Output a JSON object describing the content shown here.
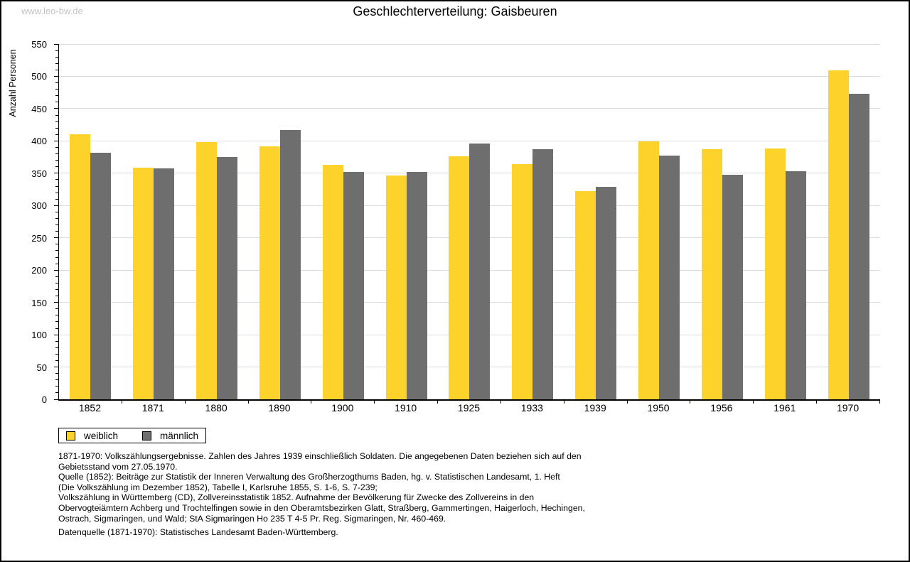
{
  "watermark": "www.leo-bw.de",
  "title": "Geschlechterverteilung: Gaisbeuren",
  "colors": {
    "weiblich": "#fdd32b",
    "maennlich": "#6e6e6e",
    "gridline": "#dcdcdc",
    "watermark": "#c3c3c3"
  },
  "chart_data": {
    "type": "bar",
    "title": "Geschlechterverteilung: Gaisbeuren",
    "xlabel": "",
    "ylabel": "Anzahl Personen",
    "ylim": [
      0,
      550
    ],
    "ytick_step": 50,
    "ytick_minor_step": 10,
    "grid": "horizontal",
    "legend_position": "bottom-left",
    "categories": [
      "1852",
      "1871",
      "1880",
      "1890",
      "1900",
      "1910",
      "1925",
      "1933",
      "1939",
      "1950",
      "1956",
      "1961",
      "1970"
    ],
    "series": [
      {
        "name": "weiblich",
        "color": "#fdd32b",
        "values": [
          410,
          359,
          398,
          392,
          363,
          346,
          376,
          364,
          322,
          399,
          387,
          388,
          509
        ]
      },
      {
        "name": "männlich",
        "color": "#6e6e6e",
        "values": [
          382,
          357,
          375,
          417,
          352,
          352,
          396,
          387,
          329,
          377,
          348,
          353,
          473
        ]
      }
    ]
  },
  "notes": {
    "lines": [
      "1871-1970: Volkszählungsergebnisse. Zahlen des Jahres 1939 einschließlich Soldaten. Die angegebenen Daten beziehen sich auf den",
      "Gebietsstand vom 27.05.1970.",
      "Quelle (1852): Beiträge zur Statistik der Inneren Verwaltung des Großherzogthums Baden, hg. v. Statistischen Landesamt, 1. Heft",
      "(Die Volkszählung im Dezember 1852), Tabelle I, Karlsruhe 1855, S. 1-6, S. 7-239;",
      "Volkszählung in Württemberg (CD), Zollvereinsstatistik 1852. Aufnahme der Bevölkerung für Zwecke des Zollvereins in den",
      "Obervogteiämtern Achberg und Trochtelfingen sowie in den Oberamtsbezirken Glatt, Straßberg, Gammertingen, Haigerloch, Hechingen,",
      "Ostrach, Sigmaringen, und Wald; StA Sigmaringen Ho 235 T 4-5 Pr. Reg. Sigmaringen, Nr. 460-469."
    ],
    "datasource": "Datenquelle (1871-1970): Statistisches Landesamt Baden-Württemberg."
  }
}
